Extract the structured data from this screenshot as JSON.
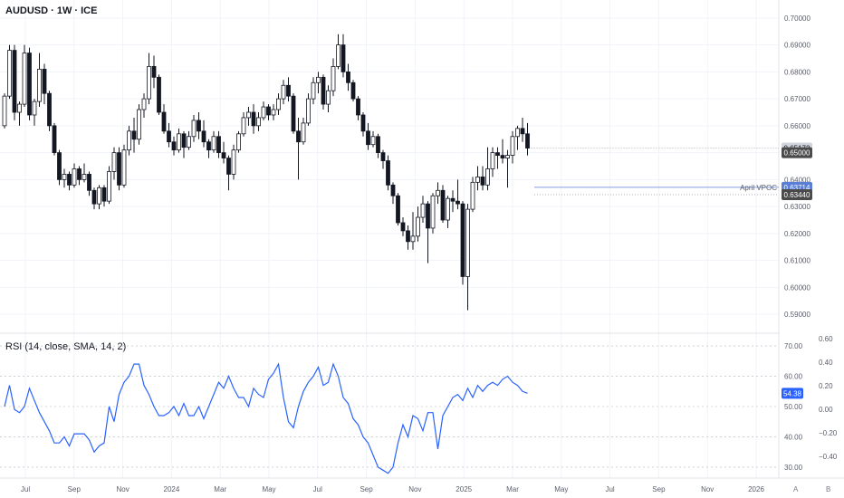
{
  "header": {
    "title": "AUDUSD · 1W · ICE"
  },
  "rsi_panel": {
    "title": "RSI (14, close, SMA, 14, 2)"
  },
  "price_axis": {
    "ticks": [
      "0.70000",
      "0.69000",
      "0.68000",
      "0.67000",
      "0.66000",
      "0.65000",
      "0.64000",
      "0.63000",
      "0.62000",
      "0.61000",
      "0.60000",
      "0.59000"
    ]
  },
  "price_tags": {
    "last_price": "0.65172",
    "level_high": "0.65000",
    "vpoc_value": "0.63714",
    "vpoc_label": "April VPOC",
    "level_low": "0.63440"
  },
  "rsi_axis_left": [
    "70.00",
    "60.00",
    "50.00",
    "40.00",
    "30.00"
  ],
  "rsi_axis_right": [
    "0.60",
    "0.40",
    "0.20",
    "0.00",
    "−0.20",
    "−0.40"
  ],
  "rsi_tag": "54.38",
  "time_axis": [
    "Jul",
    "Sep",
    "Nov",
    "2024",
    "Mar",
    "May",
    "Jul",
    "Sep",
    "Nov",
    "2025",
    "Mar",
    "May",
    "Jul",
    "Sep",
    "Nov",
    "2026"
  ],
  "buttons": {
    "auto": "A",
    "back": "B"
  },
  "colors": {
    "bull": "#ffffff",
    "bear": "#131722",
    "wick": "#131722",
    "rsi": "#2962ff",
    "vpoc": "#5b7fd6",
    "tag_dark": "#4a4a4a"
  },
  "chart_data": [
    {
      "type": "candlestick",
      "title": "AUDUSD · 1W · ICE",
      "ylim": [
        0.585,
        0.705
      ],
      "x_labels": [
        "Jul",
        "Sep",
        "Nov",
        "2024",
        "Mar",
        "May",
        "Jul",
        "Sep",
        "Nov",
        "2025",
        "Mar",
        "May",
        "Jul",
        "Sep",
        "Nov",
        "2026"
      ],
      "ohlc": [
        [
          0.66,
          0.672,
          0.659,
          0.671
        ],
        [
          0.671,
          0.69,
          0.67,
          0.688
        ],
        [
          0.688,
          0.69,
          0.662,
          0.665
        ],
        [
          0.665,
          0.669,
          0.66,
          0.668
        ],
        [
          0.668,
          0.69,
          0.667,
          0.687
        ],
        [
          0.687,
          0.689,
          0.662,
          0.664
        ],
        [
          0.664,
          0.67,
          0.66,
          0.669
        ],
        [
          0.669,
          0.687,
          0.667,
          0.681
        ],
        [
          0.681,
          0.683,
          0.668,
          0.672
        ],
        [
          0.672,
          0.673,
          0.658,
          0.66
        ],
        [
          0.66,
          0.661,
          0.649,
          0.65
        ],
        [
          0.65,
          0.651,
          0.638,
          0.64
        ],
        [
          0.64,
          0.644,
          0.637,
          0.642
        ],
        [
          0.642,
          0.643,
          0.636,
          0.638
        ],
        [
          0.638,
          0.646,
          0.637,
          0.644
        ],
        [
          0.644,
          0.645,
          0.638,
          0.64
        ],
        [
          0.64,
          0.646,
          0.639,
          0.642
        ],
        [
          0.642,
          0.643,
          0.634,
          0.636
        ],
        [
          0.636,
          0.637,
          0.629,
          0.631
        ],
        [
          0.631,
          0.638,
          0.629,
          0.637
        ],
        [
          0.637,
          0.638,
          0.63,
          0.632
        ],
        [
          0.632,
          0.645,
          0.631,
          0.643
        ],
        [
          0.643,
          0.652,
          0.64,
          0.65
        ],
        [
          0.65,
          0.652,
          0.636,
          0.638
        ],
        [
          0.638,
          0.653,
          0.637,
          0.651
        ],
        [
          0.651,
          0.66,
          0.649,
          0.658
        ],
        [
          0.658,
          0.663,
          0.65,
          0.655
        ],
        [
          0.655,
          0.668,
          0.653,
          0.666
        ],
        [
          0.666,
          0.672,
          0.663,
          0.67
        ],
        [
          0.67,
          0.687,
          0.668,
          0.682
        ],
        [
          0.682,
          0.686,
          0.674,
          0.678
        ],
        [
          0.678,
          0.679,
          0.664,
          0.665
        ],
        [
          0.665,
          0.668,
          0.657,
          0.658
        ],
        [
          0.658,
          0.661,
          0.652,
          0.654
        ],
        [
          0.654,
          0.656,
          0.649,
          0.651
        ],
        [
          0.651,
          0.659,
          0.65,
          0.657
        ],
        [
          0.657,
          0.658,
          0.648,
          0.652
        ],
        [
          0.652,
          0.658,
          0.651,
          0.656
        ],
        [
          0.656,
          0.664,
          0.654,
          0.662
        ],
        [
          0.662,
          0.665,
          0.655,
          0.658
        ],
        [
          0.658,
          0.662,
          0.652,
          0.654
        ],
        [
          0.654,
          0.655,
          0.648,
          0.651
        ],
        [
          0.651,
          0.658,
          0.65,
          0.656
        ],
        [
          0.656,
          0.658,
          0.648,
          0.65
        ],
        [
          0.65,
          0.654,
          0.646,
          0.648
        ],
        [
          0.648,
          0.649,
          0.636,
          0.642
        ],
        [
          0.642,
          0.653,
          0.64,
          0.651
        ],
        [
          0.651,
          0.658,
          0.65,
          0.657
        ],
        [
          0.657,
          0.665,
          0.656,
          0.663
        ],
        [
          0.663,
          0.667,
          0.66,
          0.665
        ],
        [
          0.665,
          0.668,
          0.657,
          0.66
        ],
        [
          0.66,
          0.665,
          0.658,
          0.663
        ],
        [
          0.663,
          0.669,
          0.662,
          0.667
        ],
        [
          0.667,
          0.668,
          0.662,
          0.664
        ],
        [
          0.664,
          0.668,
          0.662,
          0.666
        ],
        [
          0.666,
          0.672,
          0.664,
          0.67
        ],
        [
          0.67,
          0.677,
          0.668,
          0.675
        ],
        [
          0.675,
          0.678,
          0.669,
          0.671
        ],
        [
          0.671,
          0.672,
          0.657,
          0.658
        ],
        [
          0.658,
          0.663,
          0.64,
          0.654
        ],
        [
          0.654,
          0.663,
          0.653,
          0.661
        ],
        [
          0.661,
          0.672,
          0.66,
          0.67
        ],
        [
          0.67,
          0.678,
          0.668,
          0.676
        ],
        [
          0.676,
          0.68,
          0.672,
          0.678
        ],
        [
          0.678,
          0.679,
          0.666,
          0.668
        ],
        [
          0.668,
          0.675,
          0.665,
          0.673
        ],
        [
          0.673,
          0.685,
          0.671,
          0.682
        ],
        [
          0.682,
          0.694,
          0.681,
          0.69
        ],
        [
          0.69,
          0.694,
          0.678,
          0.68
        ],
        [
          0.68,
          0.683,
          0.673,
          0.676
        ],
        [
          0.676,
          0.677,
          0.669,
          0.67
        ],
        [
          0.67,
          0.671,
          0.662,
          0.664
        ],
        [
          0.664,
          0.665,
          0.656,
          0.658
        ],
        [
          0.658,
          0.661,
          0.651,
          0.653
        ],
        [
          0.653,
          0.658,
          0.652,
          0.656
        ],
        [
          0.656,
          0.657,
          0.648,
          0.65
        ],
        [
          0.65,
          0.651,
          0.644,
          0.647
        ],
        [
          0.647,
          0.649,
          0.636,
          0.638
        ],
        [
          0.638,
          0.639,
          0.631,
          0.634
        ],
        [
          0.634,
          0.635,
          0.623,
          0.624
        ],
        [
          0.624,
          0.626,
          0.619,
          0.621
        ],
        [
          0.621,
          0.623,
          0.614,
          0.617
        ],
        [
          0.617,
          0.628,
          0.614,
          0.619
        ],
        [
          0.619,
          0.63,
          0.617,
          0.626
        ],
        [
          0.626,
          0.634,
          0.624,
          0.631
        ],
        [
          0.631,
          0.632,
          0.609,
          0.622
        ],
        [
          0.622,
          0.635,
          0.62,
          0.634
        ],
        [
          0.634,
          0.639,
          0.631,
          0.636
        ],
        [
          0.636,
          0.638,
          0.624,
          0.625
        ],
        [
          0.625,
          0.634,
          0.622,
          0.633
        ],
        [
          0.633,
          0.636,
          0.628,
          0.632
        ],
        [
          0.632,
          0.64,
          0.629,
          0.631
        ],
        [
          0.631,
          0.632,
          0.601,
          0.604
        ],
        [
          0.604,
          0.631,
          0.5915,
          0.629
        ],
        [
          0.629,
          0.641,
          0.628,
          0.639
        ],
        [
          0.639,
          0.645,
          0.636,
          0.641
        ],
        [
          0.641,
          0.645,
          0.636,
          0.638
        ],
        [
          0.638,
          0.652,
          0.636,
          0.644
        ],
        [
          0.644,
          0.652,
          0.641,
          0.65
        ],
        [
          0.65,
          0.652,
          0.644,
          0.649
        ],
        [
          0.649,
          0.655,
          0.646,
          0.648
        ],
        [
          0.648,
          0.651,
          0.637,
          0.649
        ],
        [
          0.649,
          0.658,
          0.646,
          0.656
        ],
        [
          0.656,
          0.66,
          0.651,
          0.659
        ],
        [
          0.659,
          0.663,
          0.654,
          0.657
        ],
        [
          0.657,
          0.661,
          0.649,
          0.6517
        ]
      ]
    },
    {
      "type": "line",
      "title": "RSI (14, close, SMA, 14, 2)",
      "ylim": [
        27,
        73
      ],
      "series": [
        {
          "values": [
            50,
            57,
            49,
            48,
            50,
            56,
            52,
            48,
            45,
            42,
            38,
            38,
            40,
            37,
            41,
            41,
            41,
            39,
            35,
            37,
            38,
            50,
            45,
            54,
            58,
            60,
            64,
            64,
            57,
            54,
            50,
            47,
            47,
            48,
            50,
            47,
            51,
            47,
            47,
            50,
            46,
            50,
            54,
            58,
            56,
            60,
            56,
            53,
            53,
            50,
            56,
            54,
            53,
            59,
            61,
            64,
            53,
            45,
            43,
            50,
            55,
            58,
            60,
            63,
            57,
            58,
            64,
            60,
            53,
            51,
            46,
            44,
            40,
            38,
            34,
            30,
            29,
            28,
            30,
            38,
            44,
            40,
            47,
            46,
            42,
            48,
            48,
            36,
            47,
            50,
            53,
            54,
            52,
            56,
            53,
            57,
            55,
            57,
            58,
            57,
            59,
            60,
            58,
            57,
            55,
            54.38
          ]
        }
      ]
    }
  ]
}
